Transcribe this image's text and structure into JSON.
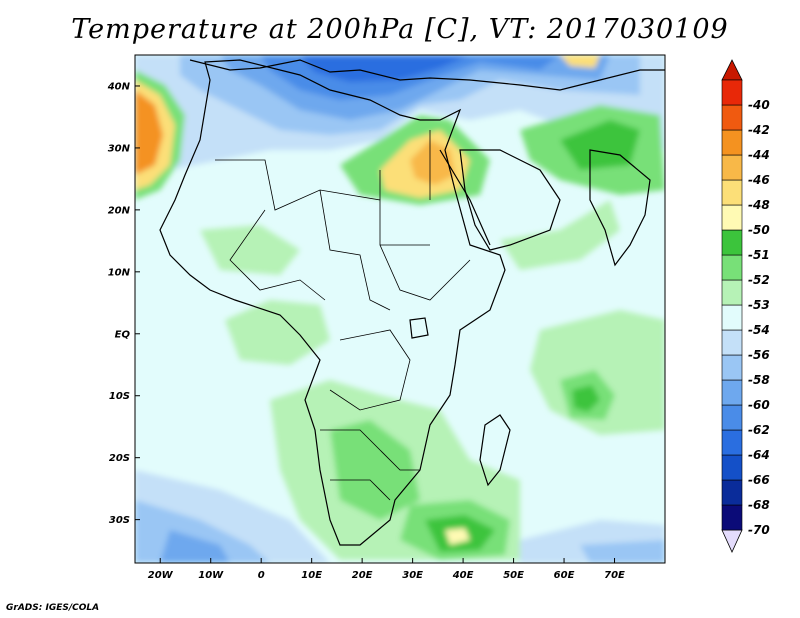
{
  "title": "Temperature at 200hPa [C], VT: 2017030109",
  "footer": "GrADS: IGES/COLA",
  "map": {
    "variable": "Temperature",
    "level": "200hPa",
    "units": "C",
    "valid_time": "2017030109",
    "lon_range": [
      -25,
      80
    ],
    "lat_range": [
      -37,
      45
    ],
    "y_ticks": [
      {
        "lat": 40,
        "label": "40N"
      },
      {
        "lat": 30,
        "label": "30N"
      },
      {
        "lat": 20,
        "label": "20N"
      },
      {
        "lat": 10,
        "label": "10N"
      },
      {
        "lat": 0,
        "label": "EQ"
      },
      {
        "lat": -10,
        "label": "10S"
      },
      {
        "lat": -20,
        "label": "20S"
      },
      {
        "lat": -30,
        "label": "30S"
      }
    ],
    "x_ticks": [
      {
        "lon": -20,
        "label": "20W"
      },
      {
        "lon": -10,
        "label": "10W"
      },
      {
        "lon": 0,
        "label": "0"
      },
      {
        "lon": 10,
        "label": "10E"
      },
      {
        "lon": 20,
        "label": "20E"
      },
      {
        "lon": 30,
        "label": "30E"
      },
      {
        "lon": 40,
        "label": "40E"
      },
      {
        "lon": 50,
        "label": "50E"
      },
      {
        "lon": 60,
        "label": "60E"
      },
      {
        "lon": 70,
        "label": "70E"
      }
    ]
  },
  "colorbar": {
    "levels": [
      {
        "label": "-70",
        "color": "#0b0b78"
      },
      {
        "label": "-68",
        "color": "#0a2c9a"
      },
      {
        "label": "-66",
        "color": "#1450c8"
      },
      {
        "label": "-64",
        "color": "#2a6ee0"
      },
      {
        "label": "-62",
        "color": "#4a8ce8"
      },
      {
        "label": "-60",
        "color": "#6ea8ee"
      },
      {
        "label": "-58",
        "color": "#9ac6f4"
      },
      {
        "label": "-56",
        "color": "#c4e0f8"
      },
      {
        "label": "-54",
        "color": "#e2fcfc"
      },
      {
        "label": "-53",
        "color": "#b6f2b6"
      },
      {
        "label": "-52",
        "color": "#78e078"
      },
      {
        "label": "-51",
        "color": "#3cc43c"
      },
      {
        "label": "-50",
        "color": "#fffab4"
      },
      {
        "label": "-48",
        "color": "#fcdf78"
      },
      {
        "label": "-46",
        "color": "#f8b848"
      },
      {
        "label": "-44",
        "color": "#f49220"
      },
      {
        "label": "-42",
        "color": "#f05a10"
      },
      {
        "label": "-40",
        "color": "#e82808"
      }
    ],
    "below_color": "#e4dcfc",
    "above_color": "#c81800"
  }
}
